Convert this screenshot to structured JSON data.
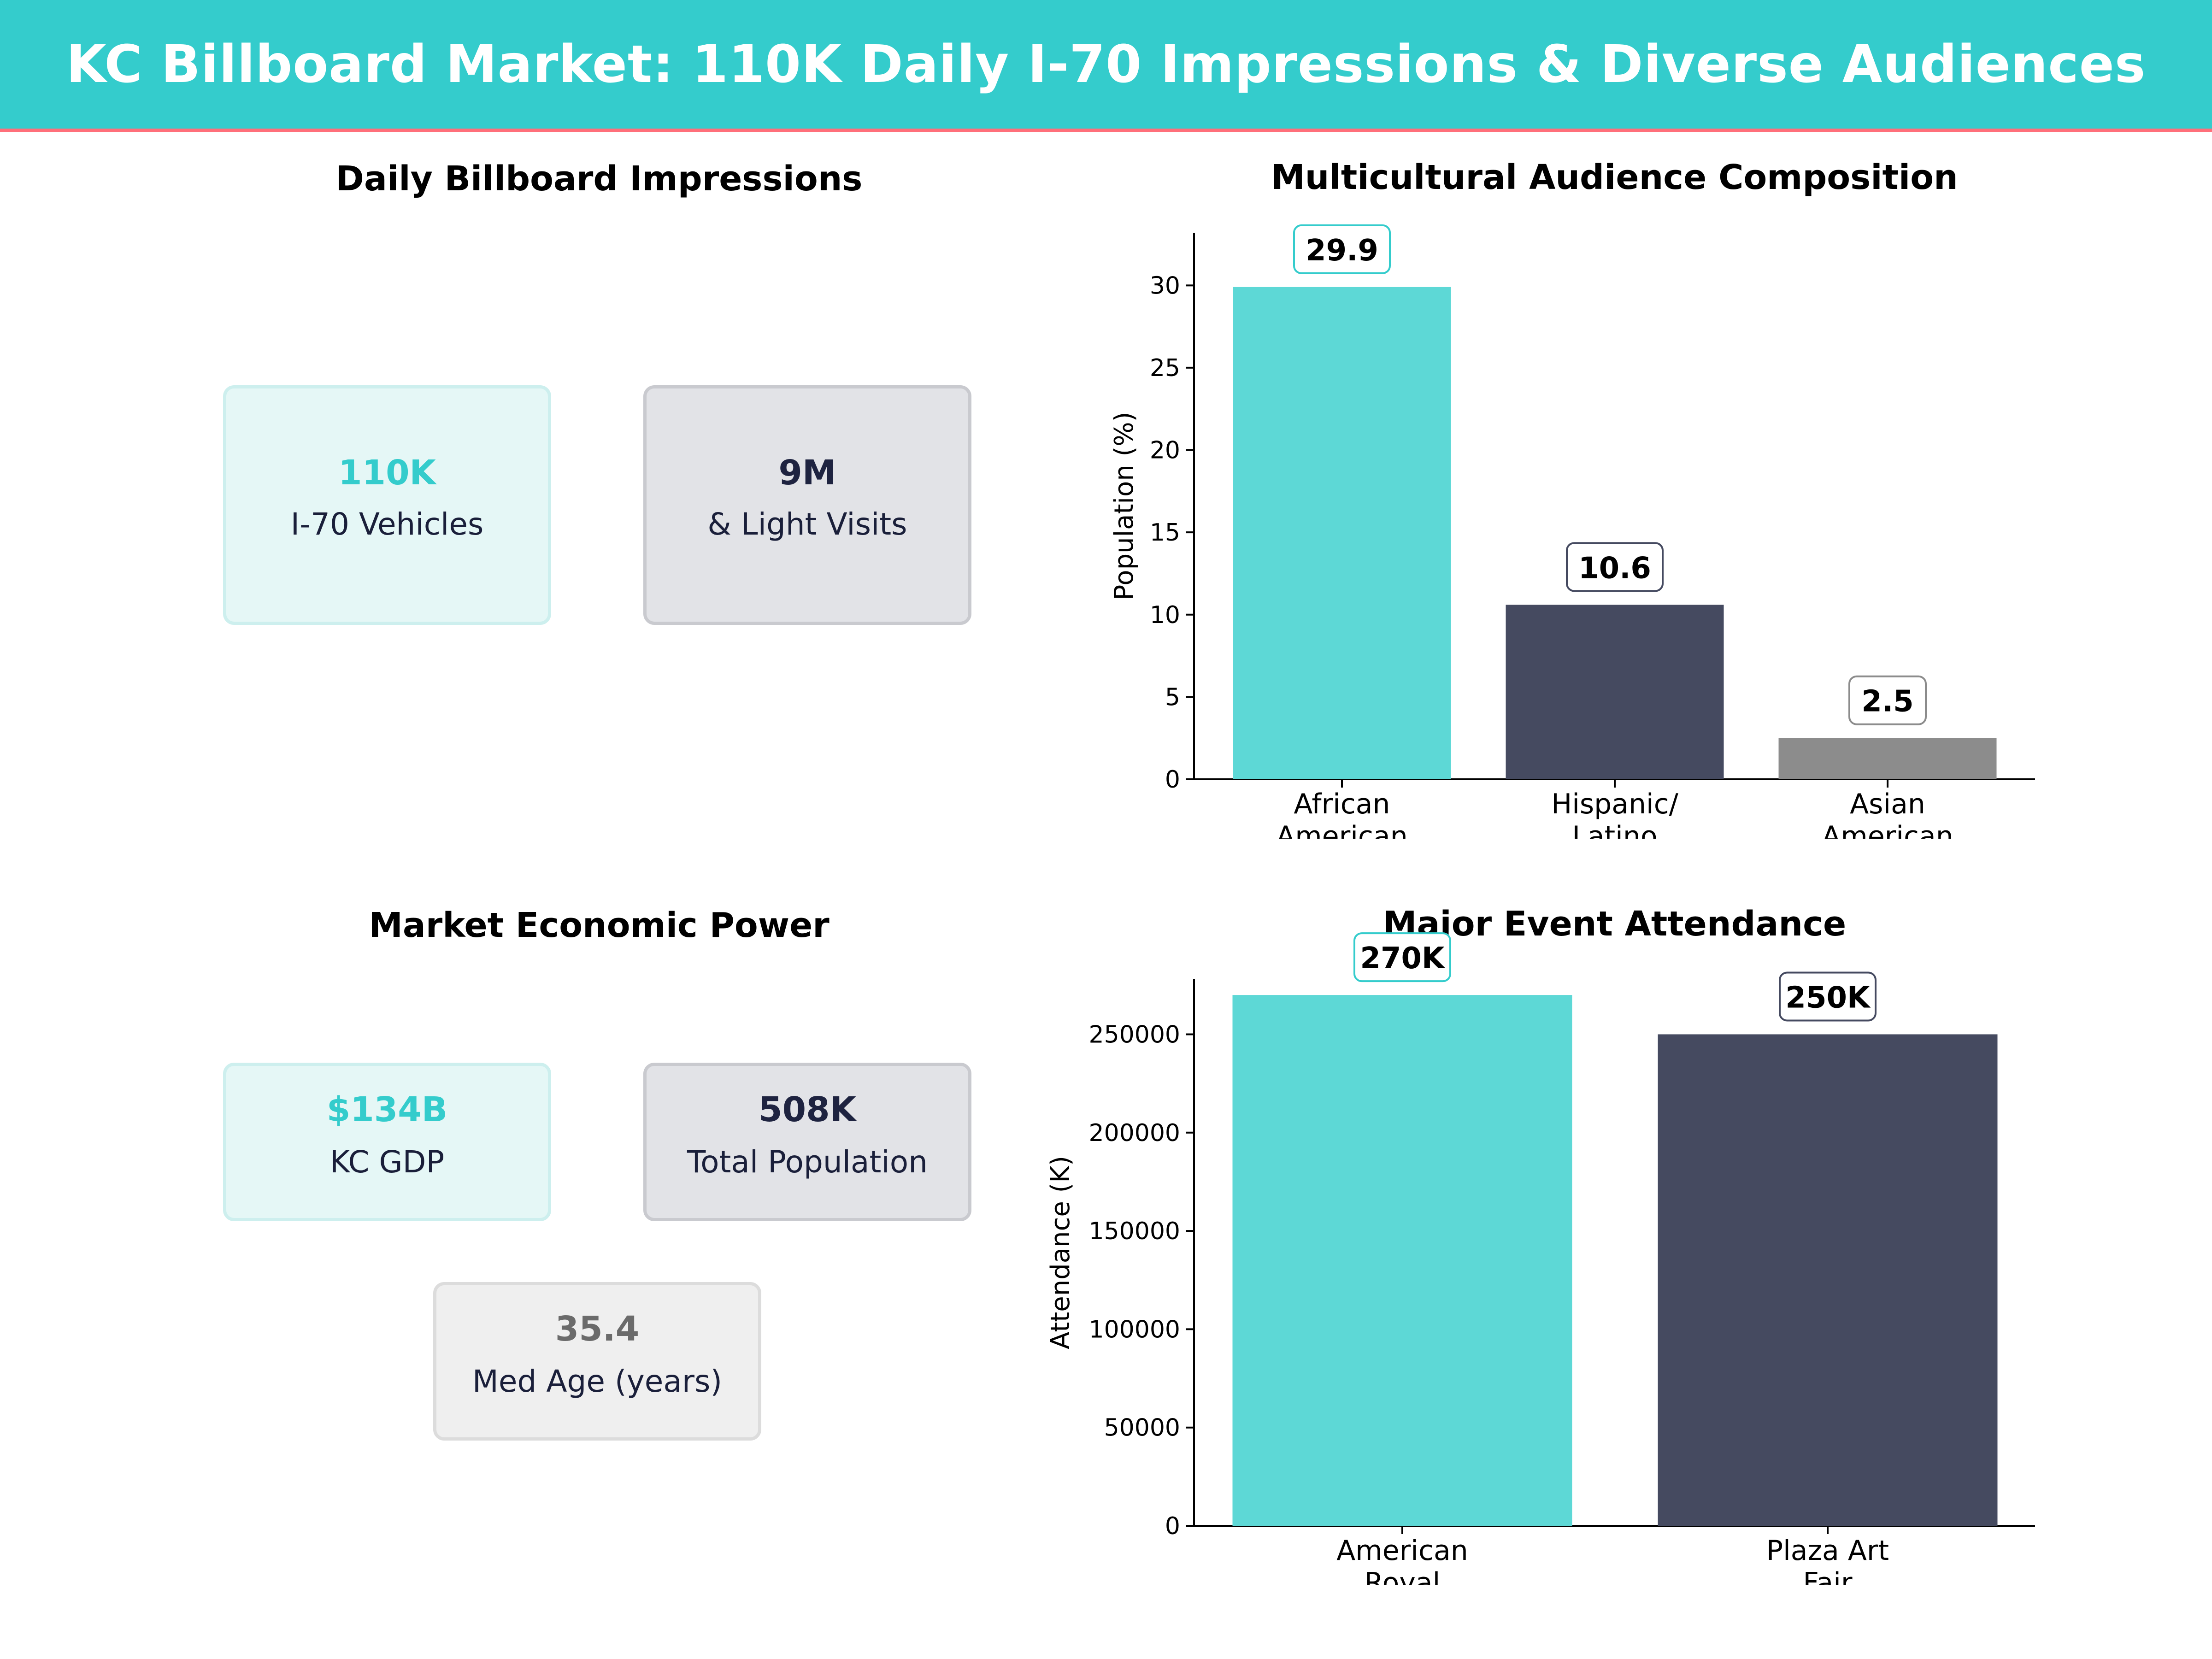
{
  "header": {
    "title": "KC Billboard Market: 110K Daily I-70 Impressions & Diverse Audiences"
  },
  "colors": {
    "teal": "#34CCCC",
    "bar_teal": "#5DD8D6",
    "navy": "#454A60",
    "gray": "#8C8C8C",
    "accent_line": "#FF6F7A"
  },
  "impressions": {
    "title": "Daily Billboard Impressions",
    "cards": [
      {
        "value": "110K",
        "label": "I-70  Vehicles"
      },
      {
        "value": "9M",
        "label": "& Light Visits"
      }
    ]
  },
  "economic": {
    "title": "Market Economic Power",
    "cards": [
      {
        "value": "$134B",
        "label": "KC GDP"
      },
      {
        "value": "508K",
        "label": "Total Population"
      },
      {
        "value": "35.4",
        "label": "Med Age (years)"
      }
    ]
  },
  "chart_data": [
    {
      "type": "bar",
      "title": "Multicultural Audience Composition",
      "categories": [
        [
          "African",
          "American"
        ],
        [
          "Hispanic/",
          "Latino"
        ],
        [
          "Asian",
          "American"
        ]
      ],
      "values": [
        29.9,
        10.6,
        2.5
      ],
      "data_labels": [
        "29.9",
        "10.6",
        "2.5"
      ],
      "xlabel": "",
      "ylabel": "Population (%)",
      "ylim": [
        0,
        33.2
      ],
      "yticks": [
        0,
        5,
        10,
        15,
        20,
        25,
        30
      ],
      "ytick_labels": [
        "0",
        "5",
        "10",
        "15",
        "20",
        "25",
        "30"
      ],
      "bar_colors": [
        "#5DD8D6",
        "#454A60",
        "#8C8C8C"
      ],
      "label_border_colors": [
        "#34CCCC",
        "#454A60",
        "#8C8C8C"
      ]
    },
    {
      "type": "bar",
      "title": "Major Event Attendance",
      "categories": [
        [
          "American",
          "Royal"
        ],
        [
          "Plaza Art",
          "Fair"
        ]
      ],
      "values": [
        270000,
        250000
      ],
      "data_labels": [
        "270K",
        "250K"
      ],
      "xlabel": "",
      "ylabel": "Attendance (K)",
      "ylim": [
        0,
        278000
      ],
      "yticks": [
        0,
        50000,
        100000,
        150000,
        200000,
        250000
      ],
      "ytick_labels": [
        "0",
        "50000",
        "100000",
        "150000",
        "200000",
        "250000"
      ],
      "bar_colors": [
        "#5DD8D6",
        "#454A60"
      ],
      "label_border_colors": [
        "#34CCCC",
        "#454A60"
      ]
    }
  ]
}
